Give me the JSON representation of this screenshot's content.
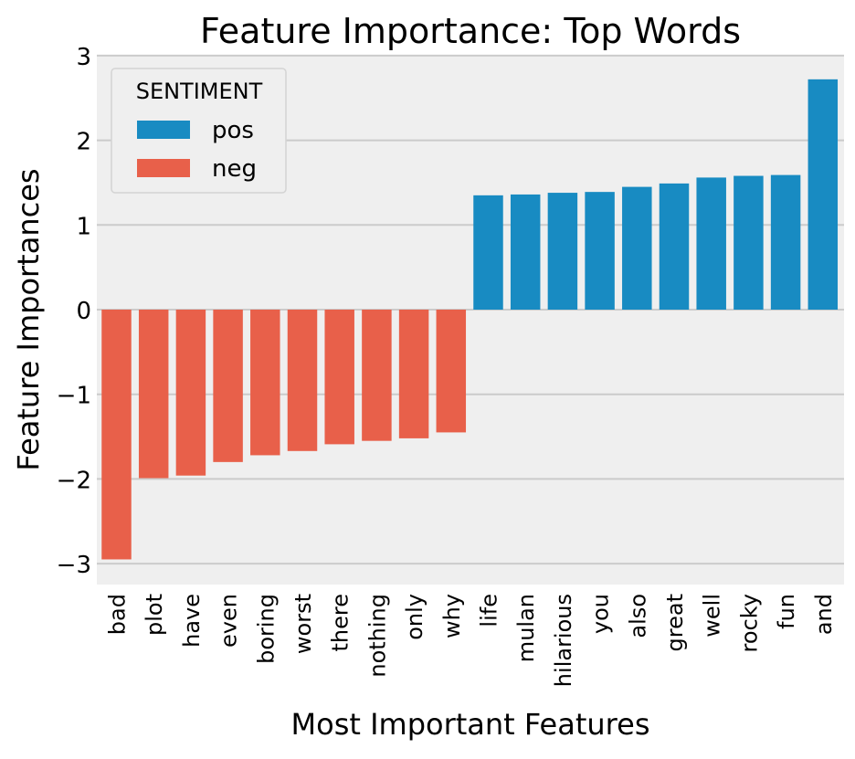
{
  "chart_data": {
    "type": "bar",
    "title": "Feature Importance: Top Words",
    "xlabel": "Most Important Features",
    "ylabel": "Feature Importances",
    "ylim": [
      -3.25,
      3.0
    ],
    "yticks": [
      3,
      2,
      1,
      0,
      -1,
      -2,
      -3
    ],
    "ytick_labels": [
      "3",
      "2",
      "1",
      "0",
      "−1",
      "−2",
      "−3"
    ],
    "grid": true,
    "legend": {
      "title": "SENTIMENT",
      "position": "top-left",
      "entries": [
        {
          "label": "pos",
          "color": "#188bc2"
        },
        {
          "label": "neg",
          "color": "#e8604a"
        }
      ]
    },
    "colors": {
      "pos": "#188bc2",
      "neg": "#e8604a",
      "background": "#efefef",
      "grid": "#cbcbcb"
    },
    "categories": [
      "bad",
      "plot",
      "have",
      "even",
      "boring",
      "worst",
      "there",
      "nothing",
      "only",
      "why",
      "life",
      "mulan",
      "hilarious",
      "you",
      "also",
      "great",
      "well",
      "rocky",
      "fun",
      "and"
    ],
    "values": [
      -2.95,
      -1.99,
      -1.96,
      -1.8,
      -1.72,
      -1.67,
      -1.59,
      -1.55,
      -1.52,
      -1.45,
      1.35,
      1.36,
      1.38,
      1.39,
      1.45,
      1.49,
      1.56,
      1.58,
      1.59,
      2.72
    ],
    "sentiment": [
      "neg",
      "neg",
      "neg",
      "neg",
      "neg",
      "neg",
      "neg",
      "neg",
      "neg",
      "neg",
      "pos",
      "pos",
      "pos",
      "pos",
      "pos",
      "pos",
      "pos",
      "pos",
      "pos",
      "pos"
    ]
  }
}
